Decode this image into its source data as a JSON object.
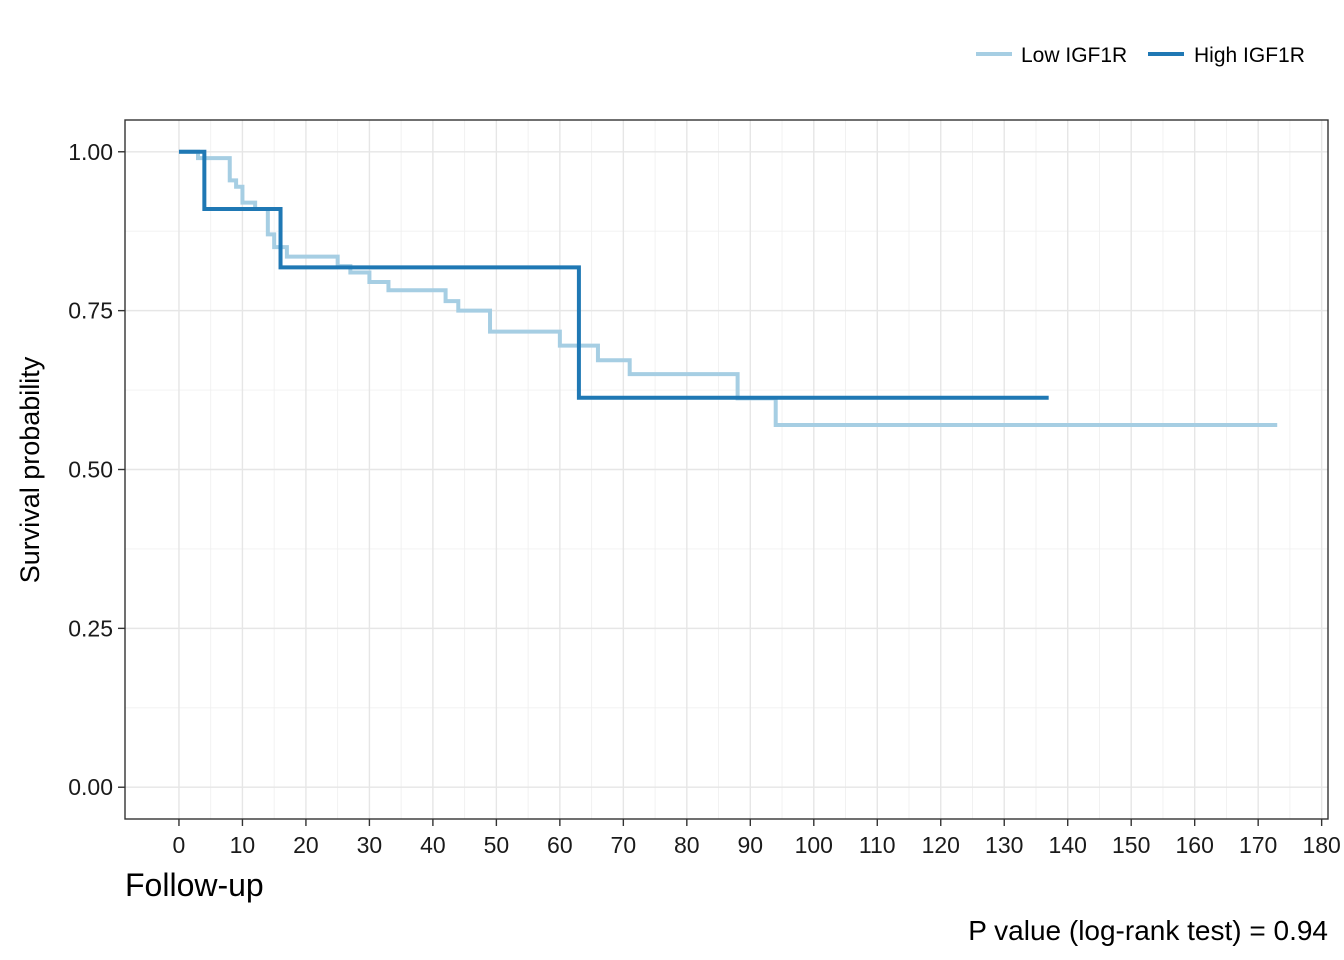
{
  "chart_data": {
    "type": "line",
    "subtype": "kaplan-meier step",
    "xlabel": "Follow-up",
    "ylabel": "Survival probability",
    "xlim": [
      -8.5,
      181
    ],
    "ylim": [
      -0.05,
      1.05
    ],
    "x_ticks": [
      0,
      10,
      20,
      30,
      40,
      50,
      60,
      70,
      80,
      90,
      100,
      110,
      120,
      130,
      140,
      150,
      160,
      170,
      180
    ],
    "y_ticks": [
      0,
      0.25,
      0.5,
      0.75,
      1
    ],
    "y_tick_labels": [
      "0.00",
      "0.25",
      "0.50",
      "0.75",
      "1.00"
    ],
    "grid": true,
    "legend_position": "top-right",
    "annotation": "P value (log-rank test) = 0.94",
    "series": [
      {
        "name": "Low IGF1R",
        "color": "#a6cee3",
        "points": [
          [
            0,
            1.0
          ],
          [
            3,
            0.99
          ],
          [
            8,
            0.955
          ],
          [
            9,
            0.945
          ],
          [
            10,
            0.92
          ],
          [
            12,
            0.91
          ],
          [
            14,
            0.87
          ],
          [
            15,
            0.85
          ],
          [
            17,
            0.835
          ],
          [
            25,
            0.82
          ],
          [
            27,
            0.81
          ],
          [
            30,
            0.795
          ],
          [
            33,
            0.782
          ],
          [
            42,
            0.765
          ],
          [
            44,
            0.75
          ],
          [
            49,
            0.717
          ],
          [
            60,
            0.695
          ],
          [
            66,
            0.672
          ],
          [
            71,
            0.65
          ],
          [
            88,
            0.612
          ],
          [
            94,
            0.57
          ],
          [
            173,
            0.57
          ]
        ]
      },
      {
        "name": "High IGF1R",
        "color": "#1f78b4",
        "points": [
          [
            0,
            1.0
          ],
          [
            4,
            0.91
          ],
          [
            16,
            0.818
          ],
          [
            63,
            0.613
          ],
          [
            137,
            0.613
          ]
        ]
      }
    ]
  }
}
